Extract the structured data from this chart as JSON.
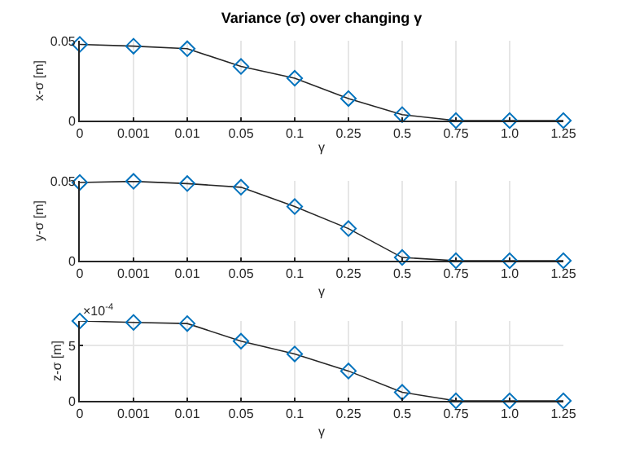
{
  "chart_data": [
    {
      "type": "line",
      "title": "Variance (σ) over changing γ",
      "xlabel": "γ",
      "ylabel": "x-σ [m]",
      "categories": [
        "0",
        "0.001",
        "0.01",
        "0.05",
        "0.1",
        "0.25",
        "0.5",
        "0.75",
        "1.0",
        "1.25"
      ],
      "series": [
        {
          "color": "#0072bd",
          "values": [
            0.0477,
            0.0466,
            0.045,
            0.0339,
            0.0265,
            0.0138,
            0.0037,
            0,
            0,
            0
          ]
        }
      ],
      "ylim": [
        0,
        0.05
      ],
      "yticks": [
        0,
        0.05
      ],
      "grid": true,
      "marker": "diamond",
      "line_style": "solid"
    },
    {
      "type": "line",
      "xlabel": "γ",
      "ylabel": "y-σ [m]",
      "categories": [
        "0",
        "0.001",
        "0.01",
        "0.05",
        "0.1",
        "0.25",
        "0.5",
        "0.75",
        "1.0",
        "1.25"
      ],
      "series": [
        {
          "color": "#0072bd",
          "values": [
            0.049,
            0.0497,
            0.0483,
            0.046,
            0.0339,
            0.0201,
            0.002,
            0,
            0,
            0
          ]
        }
      ],
      "ylim": [
        0,
        0.05
      ],
      "yticks": [
        0,
        0.05
      ],
      "grid": true,
      "marker": "diamond",
      "line_style": "solid"
    },
    {
      "type": "line",
      "xlabel": "γ",
      "ylabel": "z-σ [m]",
      "annotations": [
        "×10$^{-4}$"
      ],
      "categories": [
        "0",
        "0.001",
        "0.01",
        "0.05",
        "0.1",
        "0.25",
        "0.5",
        "0.75",
        "1.0",
        "1.25"
      ],
      "series": [
        {
          "color": "#0072bd",
          "values": [
            7.2,
            7.07,
            6.97,
            5.38,
            4.23,
            2.69,
            0.77,
            0,
            0,
            0
          ]
        }
      ],
      "ylim": [
        0,
        7.2
      ],
      "yticks": [
        0,
        5
      ],
      "grid": true,
      "marker": "diamond",
      "line_style": "solid"
    }
  ]
}
